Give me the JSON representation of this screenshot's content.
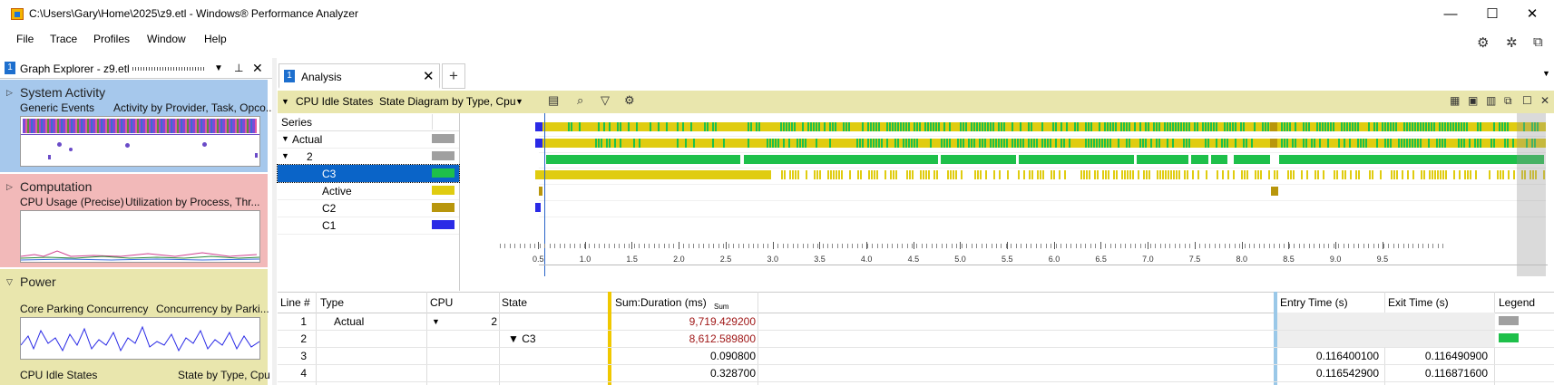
{
  "window": {
    "title": "C:\\Users\\Gary\\Home\\2025\\z9.etl - Windows® Performance Analyzer",
    "minimize": "—",
    "maximize": "☐",
    "close": "✕"
  },
  "menu": [
    "File",
    "Trace",
    "Profiles",
    "Window",
    "Help"
  ],
  "top_icons": [
    "gear-icon",
    "bug-icon",
    "share-icon"
  ],
  "graph_explorer": {
    "badge": "1",
    "title": "Graph Explorer - z9.etl",
    "sections": [
      {
        "title": "System Activity",
        "sub_left": "Generic Events",
        "sub_right": "Activity by Provider, Task, Opco..."
      },
      {
        "title": "Computation",
        "sub_left": "CPU Usage (Precise)",
        "sub_right": "Utilization by Process, Thr..."
      },
      {
        "title": "Power",
        "sub_left": "Core Parking Concurrency",
        "sub_right": "Concurrency by Parki..."
      },
      {
        "title": "CPU Idle States",
        "sub_right": "State by Type, Cpu"
      }
    ]
  },
  "analysis_tab": {
    "badge": "1",
    "label": "Analysis",
    "close": "✕",
    "add": "+"
  },
  "graph_toolbar": {
    "name": "CPU Idle States",
    "preset": "State Diagram by Type, Cpu",
    "preset_arrow": "▼"
  },
  "series": {
    "header": "Series",
    "rows": [
      {
        "label": "Actual",
        "indent": 0,
        "expander": "▼",
        "color": "#a0a0a0"
      },
      {
        "label": "2",
        "indent": 1,
        "expander": "▼",
        "color": "#a0a0a0"
      },
      {
        "label": "C3",
        "indent": 2,
        "expander": "",
        "color": "#1ec04a",
        "selected": true
      },
      {
        "label": "Active",
        "indent": 2,
        "expander": "",
        "color": "#e0cc10"
      },
      {
        "label": "C2",
        "indent": 2,
        "expander": "",
        "color": "#b8960c"
      },
      {
        "label": "C1",
        "indent": 2,
        "expander": "",
        "color": "#2a2ae6"
      }
    ]
  },
  "axis_ticks": [
    "0.5",
    "1.0",
    "1.5",
    "2.0",
    "2.5",
    "3.0",
    "3.5",
    "4.0",
    "4.5",
    "5.0",
    "5.5",
    "6.0",
    "6.5",
    "7.0",
    "7.5",
    "8.0",
    "8.5",
    "9.0",
    "9.5"
  ],
  "table": {
    "headers": {
      "line": "Line #",
      "type": "Type",
      "cpu": "CPU",
      "state": "State",
      "sum": "Sum:Duration (ms)",
      "sum_small": "Sum",
      "entry": "Entry Time (s)",
      "exit": "Exit Time (s)",
      "legend": "Legend"
    },
    "rows": [
      {
        "line": "1",
        "type": "Actual",
        "cpu_arrow": "▼",
        "cpu": "2",
        "state": "",
        "sum": "9,719.429200",
        "entry": "",
        "exit": "",
        "legend": "#a0a0a0"
      },
      {
        "line": "2",
        "type": "",
        "cpu_arrow": "",
        "cpu": "",
        "state": "▼ C3",
        "sum": "8,612.589800",
        "entry": "",
        "exit": "",
        "legend": "#1ec04a"
      },
      {
        "line": "3",
        "type": "",
        "cpu_arrow": "",
        "cpu": "",
        "state": "",
        "sum": "0.090800",
        "entry": "0.116400100",
        "exit": "0.116490900",
        "legend": ""
      },
      {
        "line": "4",
        "type": "",
        "cpu_arrow": "",
        "cpu": "",
        "state": "",
        "sum": "0.328700",
        "entry": "0.116542900",
        "exit": "0.116871600",
        "legend": ""
      }
    ]
  },
  "colors": {
    "green": "#1ec04a",
    "yellow": "#e0cc10",
    "darkyellow": "#b8960c",
    "blue": "#2a2ae6",
    "gray": "#a0a0a0",
    "selection": "#0a64c8"
  }
}
